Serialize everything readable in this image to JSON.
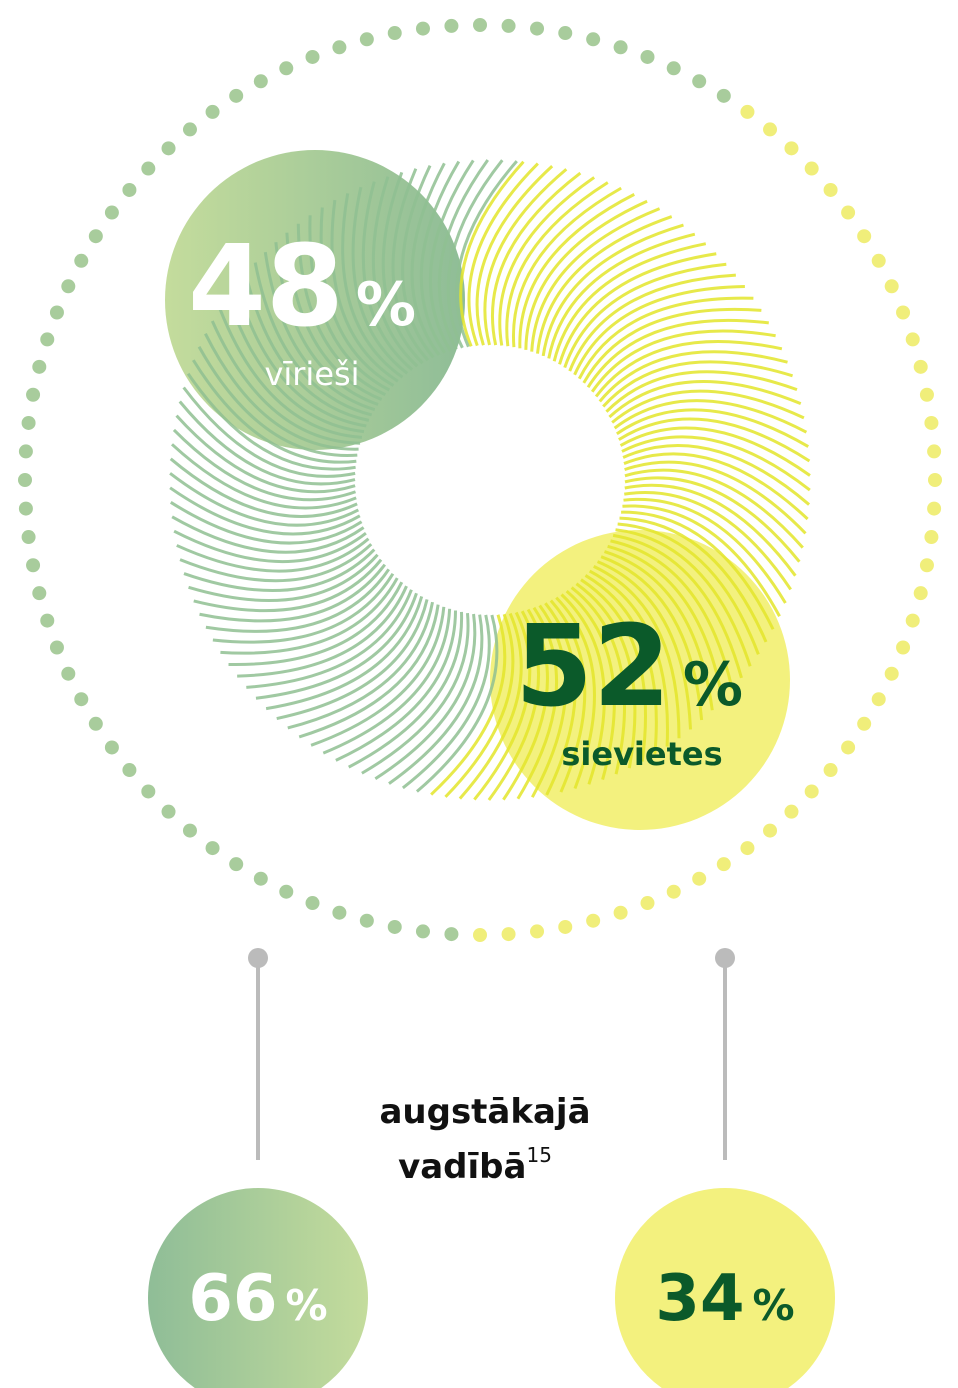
{
  "main": {
    "segments": [
      {
        "value": 48,
        "unit": "%",
        "label": "vīrieši"
      },
      {
        "value": 52,
        "unit": "%",
        "label": "sievietes"
      }
    ]
  },
  "leadership": {
    "label_line1": "augstākajā",
    "label_line2": "vadībā",
    "footnote": "15",
    "segments": [
      {
        "value": 66,
        "unit": "%"
      },
      {
        "value": 34,
        "unit": "%"
      }
    ]
  }
}
